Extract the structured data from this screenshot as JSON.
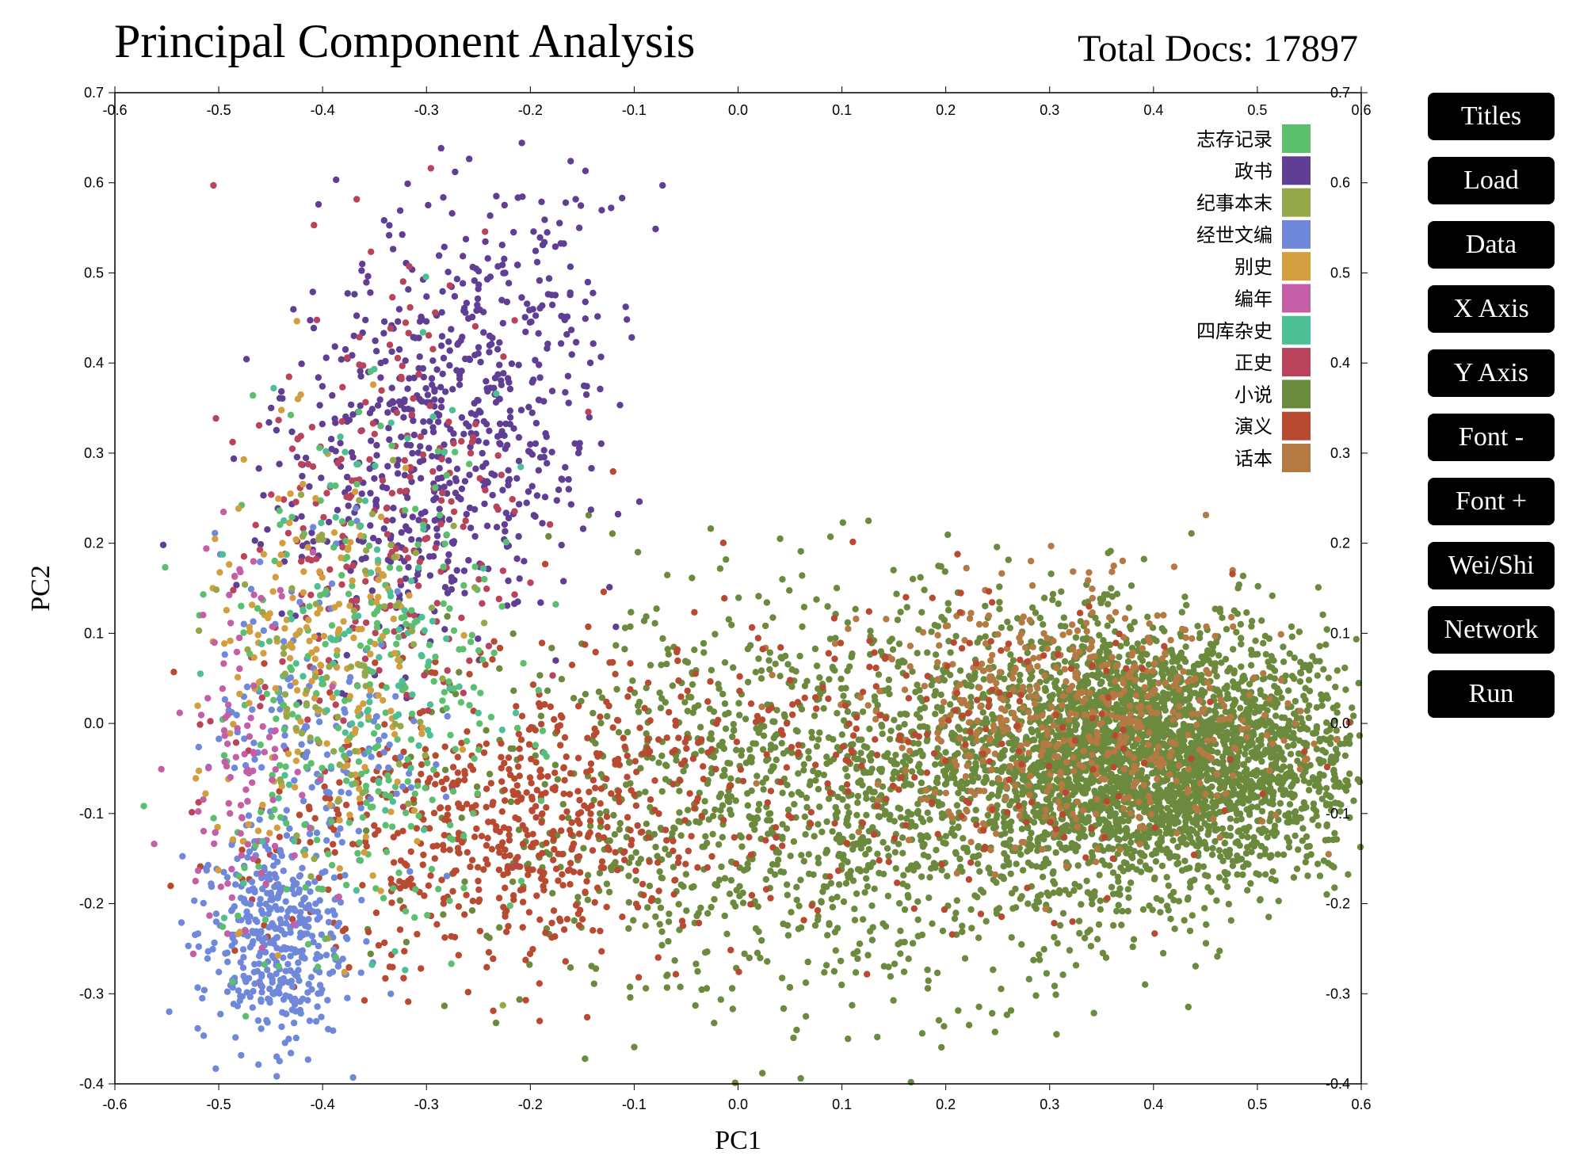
{
  "header": {
    "title": "Principal Component Analysis",
    "total_docs_label": "Total Docs: 17897"
  },
  "buttons": [
    "Titles",
    "Load",
    "Data",
    "X Axis",
    "Y Axis",
    "Font -",
    "Font +",
    "Wei/Shi",
    "Network",
    "Run"
  ],
  "chart_data": {
    "type": "scatter",
    "title": "Principal Component Analysis",
    "xlabel": "PC1",
    "ylabel": "PC2",
    "xlim": [
      -0.6,
      0.6
    ],
    "ylim": [
      -0.4,
      0.7
    ],
    "xticks": [
      -0.6,
      -0.5,
      -0.4,
      -0.3,
      -0.2,
      -0.1,
      0.0,
      0.1,
      0.2,
      0.3,
      0.4,
      0.5,
      0.6
    ],
    "yticks": [
      -0.4,
      -0.3,
      -0.2,
      -0.1,
      0.0,
      0.1,
      0.2,
      0.3,
      0.4,
      0.5,
      0.6,
      0.7
    ],
    "axes_on": [
      "bottom",
      "top",
      "left",
      "right"
    ],
    "grid": false,
    "legend_position": "top-right",
    "total_points": 17897,
    "series": [
      {
        "name": "志存记录",
        "color": "#5cbf6d"
      },
      {
        "name": "政书",
        "color": "#5f3e94"
      },
      {
        "name": "纪事本末",
        "color": "#94a84a"
      },
      {
        "name": "经世文编",
        "color": "#7088da"
      },
      {
        "name": "别史",
        "color": "#d39e3f"
      },
      {
        "name": "编年",
        "color": "#c45ea6"
      },
      {
        "name": "四库杂史",
        "color": "#4dbf94"
      },
      {
        "name": "正史",
        "color": "#b8435a"
      },
      {
        "name": "小说",
        "color": "#6c8a3e"
      },
      {
        "name": "演义",
        "color": "#b94a32"
      },
      {
        "name": "话本",
        "color": "#b57a43"
      }
    ],
    "clusters": [
      {
        "series": "小说",
        "count": 6500,
        "cx": 0.4,
        "cy": -0.04,
        "sx": 0.1,
        "sy": 0.07,
        "rot": 0.0
      },
      {
        "series": "小说",
        "count": 3000,
        "cx": 0.1,
        "cy": -0.08,
        "sx": 0.17,
        "sy": 0.11,
        "rot": 0.1
      },
      {
        "series": "话本",
        "count": 1100,
        "cx": 0.33,
        "cy": 0.0,
        "sx": 0.1,
        "sy": 0.07,
        "rot": 0.0
      },
      {
        "series": "演义",
        "count": 1300,
        "cx": -0.22,
        "cy": -0.11,
        "sx": 0.11,
        "sy": 0.08,
        "rot": 0.3
      },
      {
        "series": "演义",
        "count": 500,
        "cx": 0.15,
        "cy": -0.03,
        "sx": 0.16,
        "sy": 0.09,
        "rot": 0.0
      },
      {
        "series": "政书",
        "count": 1400,
        "cx": -0.28,
        "cy": 0.33,
        "sx": 0.07,
        "sy": 0.13,
        "rot": -0.25
      },
      {
        "series": "正史",
        "count": 500,
        "cx": -0.34,
        "cy": 0.22,
        "sx": 0.07,
        "sy": 0.16,
        "rot": -0.2
      },
      {
        "series": "经世文编",
        "count": 800,
        "cx": -0.45,
        "cy": -0.24,
        "sx": 0.035,
        "sy": 0.06,
        "rot": 0.0
      },
      {
        "series": "经世文编",
        "count": 300,
        "cx": -0.4,
        "cy": 0.0,
        "sx": 0.05,
        "sy": 0.1,
        "rot": 0.0
      },
      {
        "series": "志存记录",
        "count": 600,
        "cx": -0.36,
        "cy": 0.02,
        "sx": 0.07,
        "sy": 0.15,
        "rot": -0.1
      },
      {
        "series": "别史",
        "count": 400,
        "cx": -0.4,
        "cy": 0.05,
        "sx": 0.06,
        "sy": 0.12,
        "rot": 0.0
      },
      {
        "series": "编年",
        "count": 200,
        "cx": -0.48,
        "cy": -0.02,
        "sx": 0.03,
        "sy": 0.1,
        "rot": 0.0
      },
      {
        "series": "四库杂史",
        "count": 200,
        "cx": -0.35,
        "cy": 0.08,
        "sx": 0.06,
        "sy": 0.15,
        "rot": 0.0
      },
      {
        "series": "纪事本末",
        "count": 150,
        "cx": -0.38,
        "cy": 0.05,
        "sx": 0.06,
        "sy": 0.12,
        "rot": 0.0
      }
    ]
  }
}
